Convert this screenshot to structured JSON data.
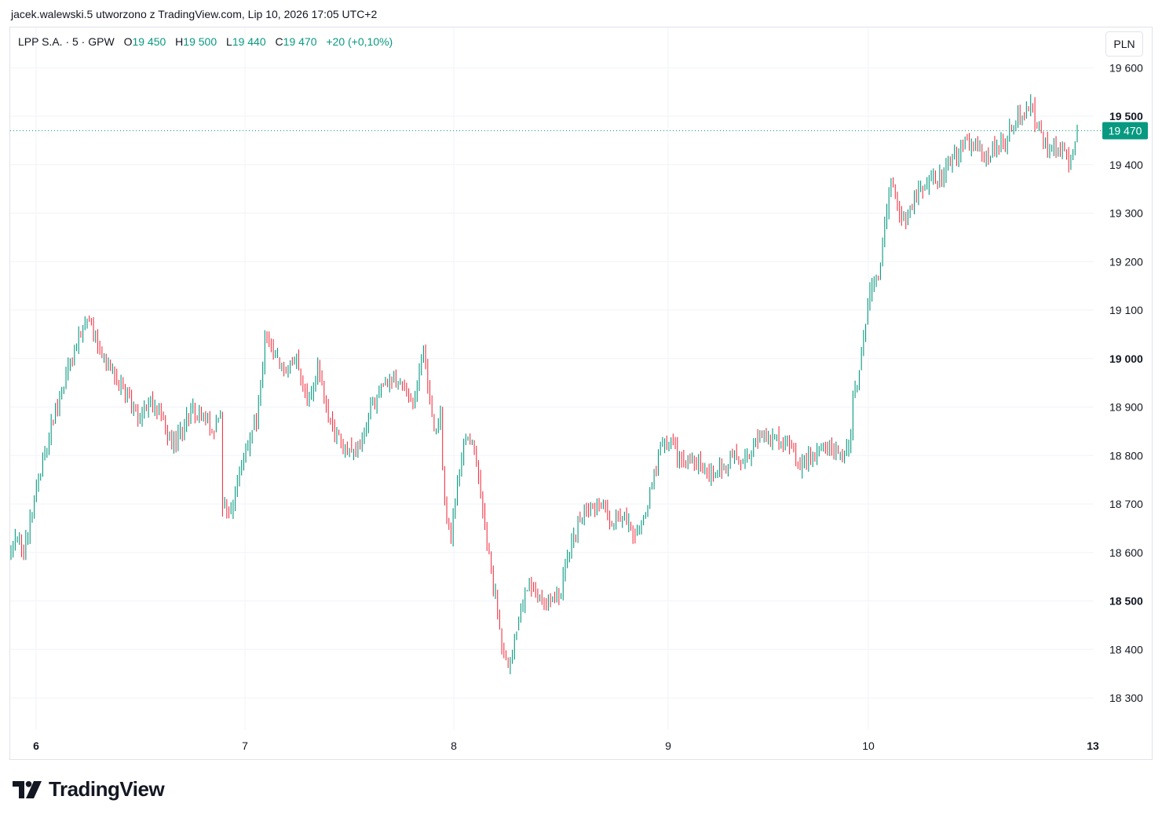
{
  "caption": "jacek.walewski.5 utworzono z TradingView.com, Lip 10, 2026 17:05 UTC+2",
  "legend": {
    "symbol": "LPP S.A. · 5 · GPW",
    "open_label": "O",
    "open": "19 450",
    "high_label": "H",
    "high": "19 500",
    "low_label": "L",
    "low": "19 440",
    "close_label": "C",
    "close": "19 470",
    "change": "+20 (+0,10%)"
  },
  "currency": "PLN",
  "last_price_label": "19 470",
  "brand": "TradingView",
  "colors": {
    "up": "#089981",
    "down": "#f23645",
    "grid": "#f0f3fa",
    "text": "#131722",
    "accent": "#089981"
  },
  "chart_data": {
    "type": "candlestick",
    "interval": "5",
    "yaxis": {
      "ticks": [
        "18 300",
        "18 400",
        "18 500",
        "18 600",
        "18 700",
        "18 800",
        "18 900",
        "19 000",
        "19 100",
        "19 200",
        "19 300",
        "19 400",
        "19 500",
        "19 600"
      ],
      "tick_values": [
        18300,
        18400,
        18500,
        18600,
        18700,
        18800,
        18900,
        19000,
        19100,
        19200,
        19300,
        19400,
        19500,
        19600
      ],
      "bold_ticks": [
        18500,
        19000,
        19500
      ],
      "ylim": [
        18230,
        19665
      ]
    },
    "xaxis": {
      "labels": [
        "6",
        "7",
        "8",
        "9",
        "10",
        "13"
      ],
      "bold_labels": [
        "6",
        "13"
      ]
    },
    "last_price": 19470,
    "days": [
      {
        "label": "6",
        "bars": 100,
        "path": [
          [
            0,
            18615
          ],
          [
            3,
            18630
          ],
          [
            6,
            18600
          ],
          [
            12,
            18740
          ],
          [
            20,
            18880
          ],
          [
            28,
            18990
          ],
          [
            35,
            19080
          ],
          [
            40,
            19040
          ],
          [
            45,
            19000
          ],
          [
            50,
            18950
          ],
          [
            55,
            18920
          ],
          [
            60,
            18870
          ],
          [
            65,
            18920
          ],
          [
            70,
            18890
          ],
          [
            75,
            18830
          ],
          [
            80,
            18840
          ],
          [
            85,
            18900
          ],
          [
            90,
            18880
          ],
          [
            95,
            18850
          ],
          [
            99,
            18880
          ]
        ]
      },
      {
        "label": "7",
        "bars": 100,
        "path": [
          [
            0,
            18700
          ],
          [
            4,
            18680
          ],
          [
            10,
            18800
          ],
          [
            16,
            18880
          ],
          [
            20,
            19040
          ],
          [
            25,
            19000
          ],
          [
            30,
            18960
          ],
          [
            35,
            19000
          ],
          [
            40,
            18900
          ],
          [
            45,
            18980
          ],
          [
            50,
            18870
          ],
          [
            55,
            18830
          ],
          [
            60,
            18800
          ],
          [
            65,
            18820
          ],
          [
            70,
            18900
          ],
          [
            75,
            18950
          ],
          [
            80,
            18960
          ],
          [
            85,
            18940
          ],
          [
            90,
            18900
          ],
          [
            95,
            19020
          ],
          [
            99,
            18880
          ]
        ]
      },
      {
        "label": "8",
        "bars": 102,
        "path": [
          [
            0,
            18860
          ],
          [
            3,
            18880
          ],
          [
            5,
            18700
          ],
          [
            8,
            18640
          ],
          [
            12,
            18780
          ],
          [
            16,
            18850
          ],
          [
            20,
            18790
          ],
          [
            23,
            18680
          ],
          [
            27,
            18560
          ],
          [
            30,
            18480
          ],
          [
            33,
            18390
          ],
          [
            36,
            18370
          ],
          [
            39,
            18440
          ],
          [
            42,
            18500
          ],
          [
            45,
            18540
          ],
          [
            50,
            18510
          ],
          [
            55,
            18500
          ],
          [
            60,
            18510
          ],
          [
            62,
            18580
          ],
          [
            66,
            18630
          ],
          [
            70,
            18680
          ],
          [
            75,
            18700
          ],
          [
            80,
            18690
          ],
          [
            85,
            18660
          ],
          [
            90,
            18680
          ],
          [
            95,
            18640
          ],
          [
            99,
            18680
          ],
          [
            101,
            18700
          ]
        ]
      },
      {
        "label": "9",
        "bars": 96,
        "path": [
          [
            0,
            18720
          ],
          [
            5,
            18820
          ],
          [
            10,
            18830
          ],
          [
            15,
            18780
          ],
          [
            20,
            18790
          ],
          [
            25,
            18770
          ],
          [
            30,
            18760
          ],
          [
            35,
            18780
          ],
          [
            40,
            18800
          ],
          [
            45,
            18790
          ],
          [
            50,
            18830
          ],
          [
            55,
            18840
          ],
          [
            60,
            18830
          ],
          [
            65,
            18820
          ],
          [
            70,
            18780
          ],
          [
            75,
            18790
          ],
          [
            80,
            18800
          ],
          [
            85,
            18820
          ],
          [
            90,
            18790
          ],
          [
            95,
            18840
          ]
        ]
      },
      {
        "label": "10",
        "bars": 107,
        "path": [
          [
            0,
            18920
          ],
          [
            4,
            19000
          ],
          [
            8,
            19150
          ],
          [
            12,
            19180
          ],
          [
            15,
            19260
          ],
          [
            18,
            19360
          ],
          [
            20,
            19340
          ],
          [
            23,
            19290
          ],
          [
            26,
            19300
          ],
          [
            30,
            19340
          ],
          [
            35,
            19360
          ],
          [
            40,
            19370
          ],
          [
            45,
            19400
          ],
          [
            50,
            19430
          ],
          [
            55,
            19440
          ],
          [
            60,
            19430
          ],
          [
            65,
            19420
          ],
          [
            68,
            19440
          ],
          [
            72,
            19450
          ],
          [
            75,
            19480
          ],
          [
            78,
            19500
          ],
          [
            81,
            19510
          ],
          [
            84,
            19530
          ],
          [
            86,
            19490
          ],
          [
            89,
            19460
          ],
          [
            92,
            19430
          ],
          [
            95,
            19440
          ],
          [
            98,
            19440
          ],
          [
            100,
            19420
          ],
          [
            102,
            19400
          ],
          [
            104,
            19440
          ],
          [
            106,
            19470
          ]
        ]
      }
    ]
  }
}
